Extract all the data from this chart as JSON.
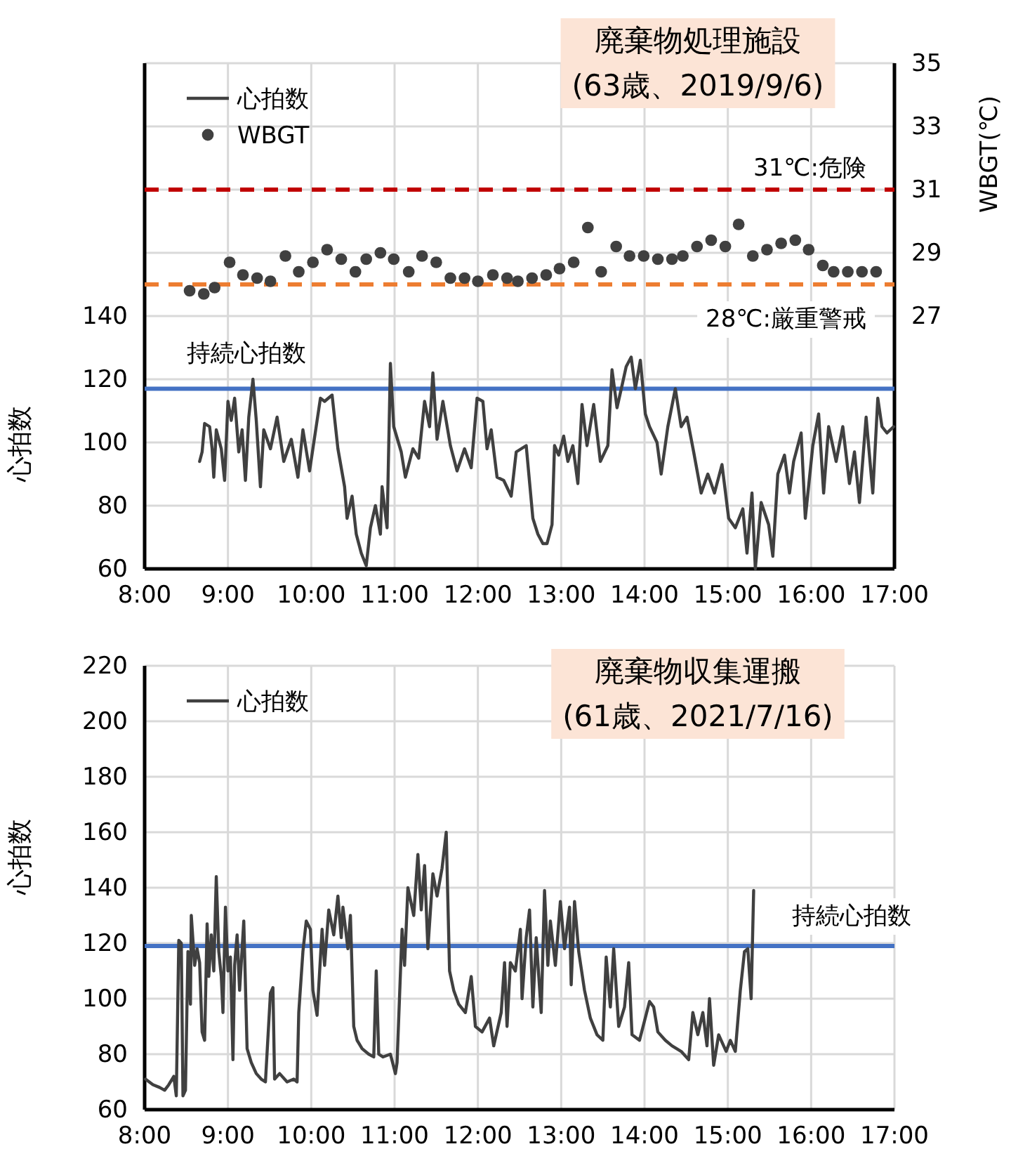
{
  "chart_data": [
    {
      "type": "line",
      "title": "廃棄物処理施設",
      "subtitle": "(63歳、2019/9/6)",
      "ylabel": "心拍数",
      "y2label": "WBGT(℃)",
      "xlim": [
        8,
        17
      ],
      "xticks": [
        {
          "value": 8,
          "label": "8:00"
        },
        {
          "value": 9,
          "label": "9:00"
        },
        {
          "value": 10,
          "label": "10:00"
        },
        {
          "value": 11,
          "label": "11:00"
        },
        {
          "value": 12,
          "label": "12:00"
        },
        {
          "value": 13,
          "label": "13:00"
        },
        {
          "value": 14,
          "label": "14:00"
        },
        {
          "value": 15,
          "label": "15:00"
        },
        {
          "value": 16,
          "label": "16:00"
        },
        {
          "value": 17,
          "label": "17:00"
        }
      ],
      "ylim": [
        60,
        220
      ],
      "yticks": [
        60,
        80,
        100,
        120,
        140,
        {
          "value": 160,
          "label": null
        },
        {
          "value": 180,
          "label": null
        },
        {
          "value": 200,
          "label": null
        },
        {
          "value": 220,
          "label": null
        }
      ],
      "y2lim": [
        19,
        35
      ],
      "y2ticks": [
        27,
        29,
        31,
        33,
        35
      ],
      "grid": true,
      "legend": "top left",
      "ref_lines": [
        {
          "axis": "y2",
          "value": 31,
          "label": "31℃:危険",
          "color": "#c00000",
          "line_style": "dashed"
        },
        {
          "axis": "y2",
          "value": 28,
          "label": "28℃:厳重警戒",
          "color": "#ed7d31",
          "line_style": "dashed"
        },
        {
          "axis": "y",
          "value": 117,
          "label": "持続心拍数",
          "color": "#4472c4",
          "line_style": "solid"
        }
      ],
      "series": [
        {
          "name": "心拍数",
          "type": "line",
          "color": "#404040",
          "marker": "none",
          "x": [
            8.66,
            8.69,
            8.72,
            8.78,
            8.81,
            8.83,
            8.86,
            8.92,
            8.96,
            9.0,
            9.04,
            9.08,
            9.13,
            9.17,
            9.21,
            9.25,
            9.3,
            9.34,
            9.39,
            9.43,
            9.51,
            9.59,
            9.67,
            9.76,
            9.84,
            9.9,
            9.98,
            10.11,
            10.16,
            10.25,
            10.32,
            10.4,
            10.43,
            10.49,
            10.54,
            10.6,
            10.66,
            10.71,
            10.77,
            10.83,
            10.85,
            10.91,
            10.95,
            10.99,
            11.08,
            11.13,
            11.22,
            11.29,
            11.36,
            11.42,
            11.46,
            11.51,
            11.58,
            11.67,
            11.75,
            11.84,
            11.92,
            11.99,
            12.06,
            12.11,
            12.16,
            12.23,
            12.31,
            12.4,
            12.46,
            12.58,
            12.66,
            12.72,
            12.78,
            12.83,
            12.89,
            12.92,
            12.97,
            13.03,
            13.08,
            13.14,
            13.2,
            13.25,
            13.31,
            13.39,
            13.47,
            13.56,
            13.61,
            13.67,
            13.73,
            13.78,
            13.84,
            13.89,
            13.95,
            14.01,
            14.06,
            14.15,
            14.2,
            14.28,
            14.37,
            14.44,
            14.51,
            14.59,
            14.68,
            14.76,
            14.84,
            14.93,
            15.01,
            15.09,
            15.18,
            15.23,
            15.29,
            15.33,
            15.4,
            15.49,
            15.54,
            15.6,
            15.68,
            15.74,
            15.79,
            15.88,
            15.93,
            16.02,
            16.09,
            16.15,
            16.21,
            16.3,
            16.38,
            16.46,
            16.52,
            16.58,
            16.66,
            16.74,
            16.8,
            16.85,
            16.91,
            16.99
          ],
          "values": [
            94,
            97,
            106,
            105,
            98,
            89,
            104,
            98,
            88,
            113,
            107,
            114,
            97,
            104,
            88,
            108,
            120,
            107,
            86,
            104,
            98,
            108,
            94,
            101,
            89,
            104,
            91,
            114,
            113,
            115,
            98,
            86,
            76,
            83,
            71,
            65,
            61,
            73,
            80,
            71,
            86,
            73,
            125,
            105,
            97,
            89,
            98,
            95,
            113,
            105,
            122,
            101,
            113,
            99,
            91,
            98,
            92,
            114,
            113,
            98,
            104,
            89,
            88,
            83,
            97,
            99,
            76,
            71,
            68,
            68,
            74,
            99,
            96,
            102,
            94,
            99,
            87,
            112,
            99,
            112,
            94,
            99,
            123,
            111,
            118,
            124,
            127,
            117,
            126,
            109,
            105,
            100,
            90,
            105,
            117,
            105,
            108,
            97,
            84,
            90,
            84,
            93,
            76,
            73,
            79,
            65,
            84,
            60,
            81,
            74,
            64,
            90,
            96,
            84,
            94,
            103,
            76,
            99,
            109,
            84,
            105,
            94,
            105,
            87,
            97,
            81,
            108,
            84,
            114,
            105,
            103,
            105
          ]
        },
        {
          "name": "WBGT",
          "type": "scatter",
          "axis": "y2",
          "color": "#404040",
          "marker": "circle",
          "x": [
            8.54,
            8.71,
            8.84,
            9.02,
            9.18,
            9.35,
            9.51,
            9.69,
            9.85,
            10.02,
            10.19,
            10.36,
            10.53,
            10.66,
            10.83,
            10.99,
            11.17,
            11.33,
            11.5,
            11.67,
            11.84,
            12.0,
            12.18,
            12.35,
            12.48,
            12.65,
            12.82,
            12.98,
            13.15,
            13.32,
            13.48,
            13.66,
            13.82,
            13.99,
            14.16,
            14.33,
            14.46,
            14.63,
            14.8,
            14.97,
            15.13,
            15.3,
            15.47,
            15.64,
            15.81,
            15.97,
            16.14,
            16.27,
            16.44,
            16.61,
            16.78
          ],
          "values": [
            27.8,
            27.7,
            27.9,
            28.7,
            28.3,
            28.2,
            28.1,
            28.9,
            28.4,
            28.7,
            29.1,
            28.8,
            28.4,
            28.8,
            29.0,
            28.8,
            28.4,
            28.9,
            28.7,
            28.2,
            28.2,
            28.1,
            28.3,
            28.2,
            28.1,
            28.2,
            28.3,
            28.5,
            28.7,
            29.8,
            28.4,
            29.2,
            28.9,
            28.9,
            28.8,
            28.8,
            28.9,
            29.2,
            29.4,
            29.2,
            29.9,
            28.9,
            29.1,
            29.3,
            29.4,
            29.1,
            28.6,
            28.4,
            28.4,
            28.4,
            28.4
          ]
        }
      ]
    },
    {
      "type": "line",
      "title": "廃棄物収集運搬",
      "subtitle": "(61歳、2021/7/16)",
      "ylabel": "心拍数",
      "xlim": [
        8,
        17
      ],
      "xticks": [
        {
          "value": 8,
          "label": "8:00"
        },
        {
          "value": 9,
          "label": "9:00"
        },
        {
          "value": 10,
          "label": "10:00"
        },
        {
          "value": 11,
          "label": "11:00"
        },
        {
          "value": 12,
          "label": "12:00"
        },
        {
          "value": 13,
          "label": "13:00"
        },
        {
          "value": 14,
          "label": "14:00"
        },
        {
          "value": 15,
          "label": "15:00"
        },
        {
          "value": 16,
          "label": "16:00"
        },
        {
          "value": 17,
          "label": "17:00"
        }
      ],
      "ylim": [
        60,
        220
      ],
      "yticks": [
        60,
        80,
        100,
        120,
        140,
        160,
        180,
        200,
        220
      ],
      "grid": true,
      "legend": "top left",
      "ref_lines": [
        {
          "axis": "y",
          "value": 119,
          "label": "持続心拍数",
          "color": "#4472c4",
          "line_style": "solid"
        }
      ],
      "series": [
        {
          "name": "心拍数",
          "type": "line",
          "color": "#404040",
          "marker": "none",
          "x": [
            8.01,
            8.1,
            8.18,
            8.24,
            8.29,
            8.35,
            8.38,
            8.41,
            8.44,
            8.46,
            8.49,
            8.52,
            8.55,
            8.56,
            8.6,
            8.63,
            8.66,
            8.69,
            8.72,
            8.75,
            8.77,
            8.8,
            8.83,
            8.86,
            8.89,
            8.92,
            8.94,
            8.97,
            9.0,
            9.03,
            9.06,
            9.08,
            9.11,
            9.14,
            9.19,
            9.23,
            9.28,
            9.34,
            9.4,
            9.45,
            9.51,
            9.54,
            9.56,
            9.62,
            9.71,
            9.79,
            9.83,
            9.85,
            9.9,
            9.94,
            9.99,
            10.02,
            10.07,
            10.13,
            10.16,
            10.21,
            10.27,
            10.32,
            10.36,
            10.38,
            10.44,
            10.47,
            10.51,
            10.55,
            10.61,
            10.69,
            10.75,
            10.78,
            10.81,
            10.86,
            10.95,
            11.01,
            11.03,
            11.09,
            11.12,
            11.16,
            11.23,
            11.28,
            11.32,
            11.36,
            11.4,
            11.46,
            11.51,
            11.57,
            11.62,
            11.66,
            11.71,
            11.77,
            11.85,
            11.92,
            11.97,
            12.05,
            12.14,
            12.19,
            12.28,
            12.32,
            12.35,
            12.39,
            12.45,
            12.51,
            12.53,
            12.58,
            12.62,
            12.66,
            12.7,
            12.76,
            12.8,
            12.84,
            12.87,
            12.93,
            12.99,
            13.04,
            13.1,
            13.12,
            13.16,
            13.21,
            13.28,
            13.35,
            13.43,
            13.5,
            13.54,
            13.59,
            13.63,
            13.69,
            13.76,
            13.81,
            13.85,
            13.94,
            14.06,
            14.11,
            14.16,
            14.25,
            14.33,
            14.44,
            14.53,
            14.58,
            14.64,
            14.7,
            14.75,
            14.78,
            14.83,
            14.89,
            14.98,
            15.03,
            15.09,
            15.15,
            15.2,
            15.24,
            15.28,
            15.31
          ],
          "values": [
            71,
            69,
            68,
            67,
            69,
            72,
            65,
            121,
            120,
            65,
            67,
            117,
            98,
            130,
            112,
            118,
            113,
            88,
            85,
            127,
            108,
            123,
            110,
            144,
            117,
            108,
            95,
            133,
            110,
            115,
            78,
            112,
            123,
            103,
            128,
            82,
            77,
            73,
            71,
            70,
            102,
            104,
            71,
            73,
            70,
            71,
            70,
            95,
            117,
            128,
            125,
            103,
            94,
            125,
            112,
            132,
            123,
            137,
            122,
            133,
            118,
            130,
            90,
            85,
            82,
            80,
            79,
            110,
            80,
            79,
            80,
            73,
            77,
            125,
            112,
            140,
            130,
            152,
            132,
            148,
            118,
            145,
            137,
            147,
            160,
            110,
            103,
            98,
            95,
            108,
            90,
            88,
            93,
            83,
            95,
            113,
            90,
            113,
            110,
            125,
            100,
            122,
            132,
            97,
            122,
            95,
            139,
            112,
            128,
            112,
            135,
            118,
            133,
            105,
            135,
            117,
            103,
            93,
            87,
            85,
            115,
            97,
            118,
            90,
            97,
            113,
            87,
            85,
            99,
            97,
            88,
            85,
            83,
            81,
            78,
            95,
            87,
            95,
            83,
            100,
            76,
            87,
            81,
            85,
            81,
            103,
            117,
            118,
            100,
            139
          ]
        }
      ]
    }
  ]
}
